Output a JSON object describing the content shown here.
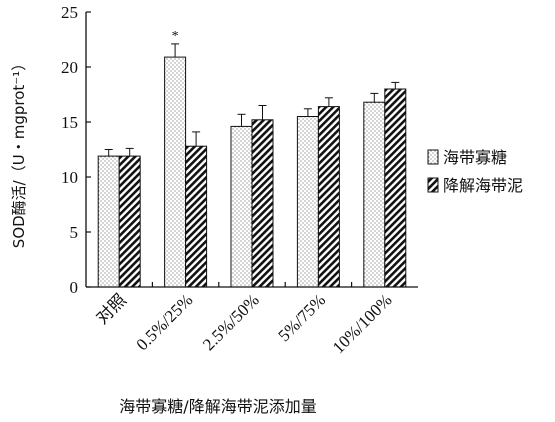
{
  "chart_data": {
    "type": "bar",
    "title": "",
    "ylabel": "SOD酶活/（U・mgprot⁻¹）",
    "xlabel": "海带寡糖/降解海带泥添加量",
    "ylim": [
      0,
      25
    ],
    "yticks": [
      "0",
      "5",
      "10",
      "15",
      "20",
      "25"
    ],
    "categories": [
      "对照",
      "0.5%/25%",
      "2.5%/50%",
      "5%/75%",
      "10%/100%"
    ],
    "series": [
      {
        "name": "海带寡糖",
        "pattern": "dots",
        "values": [
          11.9,
          20.9,
          14.6,
          15.5,
          16.8
        ],
        "errors": [
          0.6,
          1.2,
          1.1,
          0.7,
          0.8
        ]
      },
      {
        "name": "降解海带泥",
        "pattern": "diagonal-stripes",
        "values": [
          11.9,
          12.8,
          15.2,
          16.4,
          18.0
        ],
        "errors": [
          0.7,
          1.3,
          1.3,
          0.8,
          0.6
        ]
      }
    ],
    "annotations": [
      {
        "category": "0.5%/25%",
        "series": "海带寡糖",
        "text": "*"
      }
    ],
    "legend_position": "right",
    "grid": false,
    "colors": {
      "axis": "#111111",
      "bar_fill": "#ffffff",
      "bar_stroke": "#111111"
    }
  }
}
